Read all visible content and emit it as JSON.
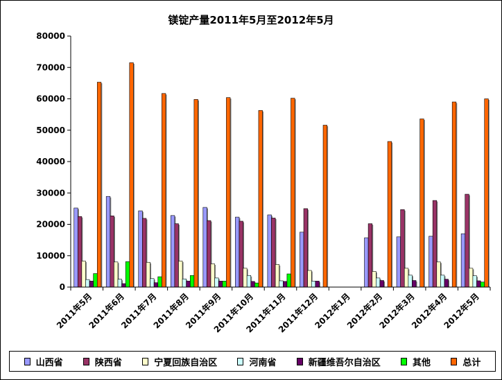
{
  "chart_data": {
    "type": "bar",
    "title": "镁锭产量2011年5月至2012年5月",
    "xlabel": "",
    "ylabel": "",
    "ylim": [
      0,
      80000
    ],
    "yticks": [
      "0",
      "10000",
      "20000",
      "30000",
      "40000",
      "50000",
      "60000",
      "70000",
      "80000"
    ],
    "categories": [
      "2011年5月",
      "2011年6月",
      "2011年7月",
      "2011年8月",
      "2011年9月",
      "2011年10月",
      "2011年11月",
      "2011年12月",
      "2012年1月",
      "2012年2月",
      "2012年3月",
      "2012年4月",
      "2012年5月"
    ],
    "legend_position": "bottom",
    "grid": false,
    "series": [
      {
        "name": "山西省",
        "color": "#9999ff",
        "values": [
          25200,
          28900,
          24300,
          22800,
          25400,
          22300,
          23000,
          17500,
          0,
          15700,
          16000,
          16200,
          17000
        ]
      },
      {
        "name": "陕西省",
        "color": "#993366",
        "values": [
          22500,
          22700,
          21900,
          20200,
          21200,
          21000,
          22000,
          25000,
          0,
          20200,
          24700,
          27600,
          29600
        ]
      },
      {
        "name": "宁夏回族自治区",
        "color": "#ffffcc",
        "values": [
          8300,
          8000,
          7900,
          8300,
          7400,
          6000,
          7200,
          5300,
          0,
          5000,
          6000,
          8000,
          6000
        ]
      },
      {
        "name": "河南省",
        "color": "#ccffff",
        "values": [
          2400,
          2500,
          2700,
          2600,
          2900,
          3700,
          2000,
          1900,
          0,
          2900,
          3800,
          3800,
          3600
        ]
      },
      {
        "name": "新疆维吾尔自治区",
        "color": "#660066",
        "values": [
          1900,
          1100,
          1400,
          1900,
          1900,
          1800,
          1800,
          1900,
          0,
          2100,
          2100,
          2500,
          2000
        ]
      },
      {
        "name": "其他",
        "color": "#00ff00",
        "values": [
          4300,
          8100,
          3300,
          3700,
          1900,
          1300,
          4200,
          0,
          0,
          0,
          0,
          0,
          1600
        ]
      },
      {
        "name": "总计",
        "color": "#ff6600",
        "values": [
          65300,
          71500,
          61700,
          59800,
          60400,
          56300,
          60200,
          51600,
          0,
          46400,
          53600,
          59000,
          60000
        ]
      }
    ]
  }
}
